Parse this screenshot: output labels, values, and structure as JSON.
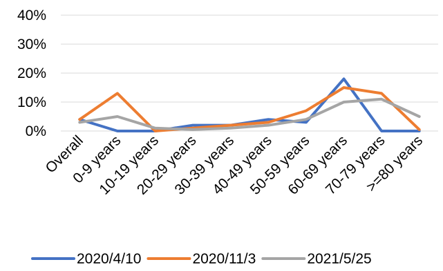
{
  "chart_data": {
    "type": "line",
    "categories": [
      "Overall",
      "0-9 years",
      "10-19 years",
      "20-29 years",
      "30-39 years",
      "40-49 years",
      "50-59 years",
      "60-69 years",
      "70-79 years",
      ">=80 years"
    ],
    "y_ticks": [
      "0%",
      "10%",
      "20%",
      "30%",
      "40%"
    ],
    "ylim": [
      0,
      40
    ],
    "y_unit": "%",
    "grid": true,
    "legend_position": "bottom",
    "series": [
      {
        "name": "2020/4/10",
        "color": "#4472C4",
        "values": [
          4,
          0,
          0,
          2,
          2,
          4,
          3,
          18,
          0,
          0
        ]
      },
      {
        "name": "2020/11/3",
        "color": "#ED7D31",
        "values": [
          4,
          13,
          0,
          1,
          2,
          3,
          7,
          15,
          13,
          0.5
        ]
      },
      {
        "name": "2021/5/25",
        "color": "#A5A5A5",
        "values": [
          3,
          5,
          1,
          0.5,
          1,
          2,
          4,
          10,
          11,
          5
        ]
      }
    ]
  }
}
